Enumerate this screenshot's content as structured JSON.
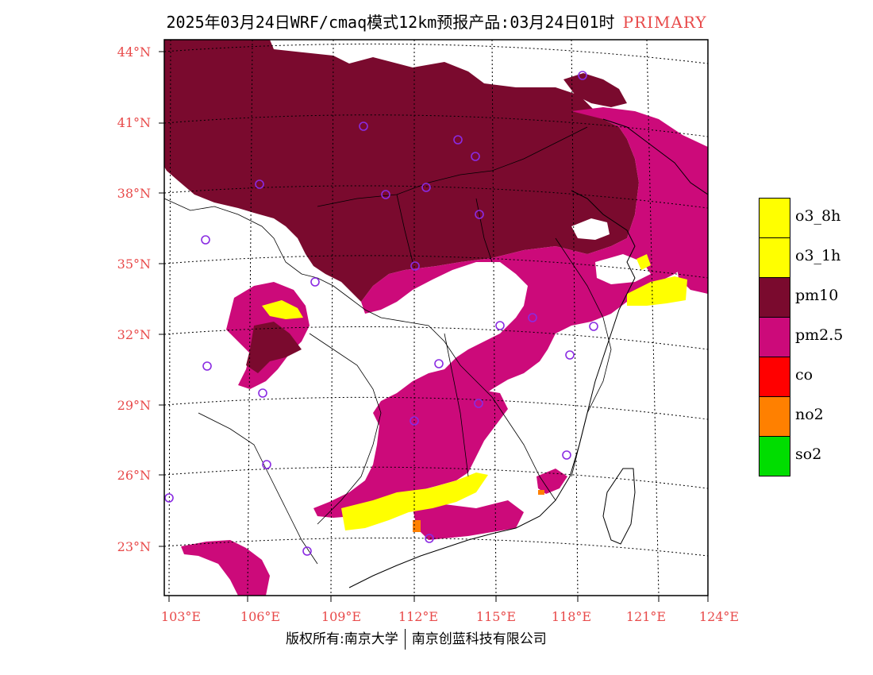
{
  "title": {
    "main": "2025年03月24日WRF/cmaq模式12km预报产品:03月24日01时",
    "badge": "PRIMARY"
  },
  "axes": {
    "lat_labels": [
      "44°N",
      "41°N",
      "38°N",
      "35°N",
      "32°N",
      "29°N",
      "26°N",
      "23°N"
    ],
    "lon_labels": [
      "103°E",
      "106°E",
      "109°E",
      "112°E",
      "115°E",
      "118°E",
      "121°E",
      "124°E"
    ]
  },
  "legend": [
    {
      "label": "o3_8h",
      "color": "#ffff00"
    },
    {
      "label": "o3_1h",
      "color": "#ffff00"
    },
    {
      "label": "pm10",
      "color": "#7a0a2e"
    },
    {
      "label": "pm2.5",
      "color": "#cc0a7a"
    },
    {
      "label": "co",
      "color": "#ff0000"
    },
    {
      "label": "no2",
      "color": "#ff8000"
    },
    {
      "label": "so2",
      "color": "#00dd00"
    }
  ],
  "footer": {
    "left": "版权所有:南京大学",
    "right": "南京创蓝科技有限公司"
  }
}
